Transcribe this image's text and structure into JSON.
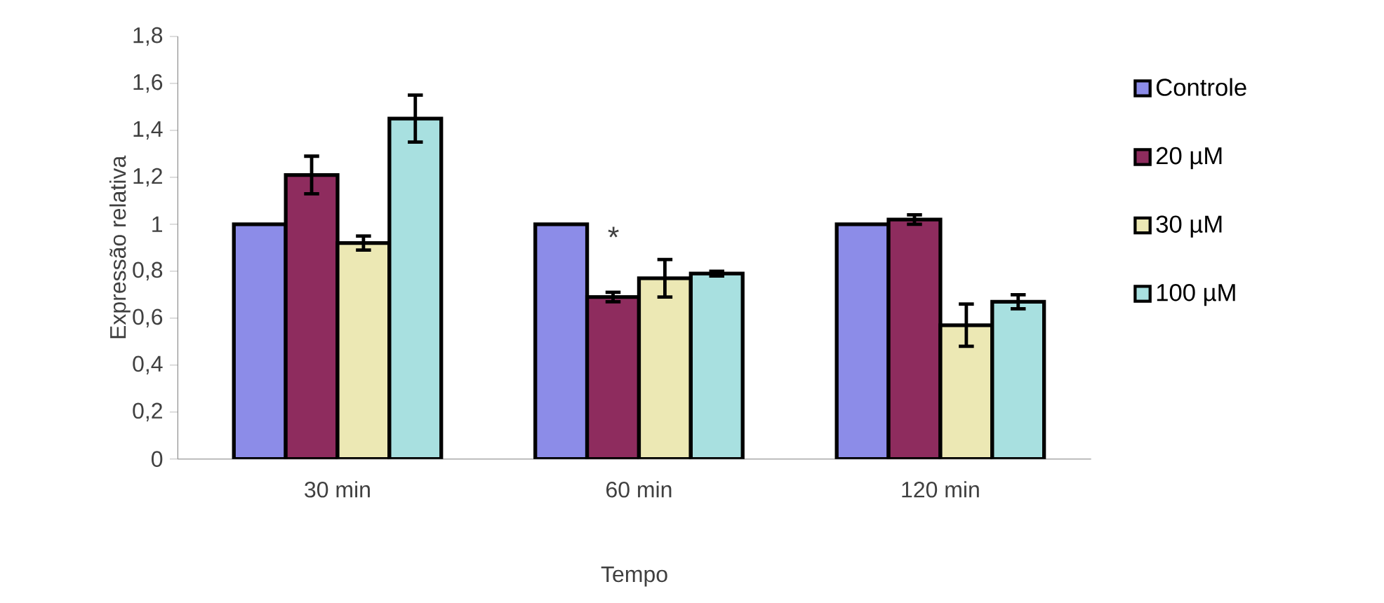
{
  "chart_data": {
    "type": "bar",
    "xlabel": "Tempo",
    "ylabel": "Expressão relativa",
    "categories": [
      "30 min",
      "60 min",
      "120 min"
    ],
    "series": [
      {
        "name": "Controle",
        "color": "#8c8ce8",
        "values": [
          1,
          1,
          1
        ],
        "errors": [
          null,
          null,
          null
        ]
      },
      {
        "name": "20 µM",
        "color": "#8e2c5e",
        "values": [
          1.21,
          0.69,
          1.02
        ],
        "errors": [
          0.08,
          0.02,
          0.02
        ]
      },
      {
        "name": "30 µM",
        "color": "#ece8b4",
        "values": [
          0.92,
          0.77,
          0.57
        ],
        "errors": [
          0.03,
          0.08,
          0.09
        ]
      },
      {
        "name": "100 µM",
        "color": "#a8e0e0",
        "values": [
          1.45,
          0.79,
          0.67
        ],
        "errors": [
          0.1,
          0.01,
          0.03
        ]
      }
    ],
    "ylim": [
      0,
      1.8
    ],
    "yticks": [
      0,
      {
        "value": 0.2,
        "label": "0,2"
      },
      {
        "value": 0.4,
        "label": "0,4"
      },
      {
        "value": 0.6,
        "label": "0,6"
      },
      {
        "value": 0.8,
        "label": "0,8"
      },
      1,
      {
        "value": 1.2,
        "label": "1,2"
      },
      {
        "value": 1.4,
        "label": "1,4"
      },
      {
        "value": 1.6,
        "label": "1,6"
      },
      {
        "value": 1.8,
        "label": "1,8"
      }
    ],
    "annotations": [
      "*"
    ],
    "legend": "right",
    "grid": false
  }
}
